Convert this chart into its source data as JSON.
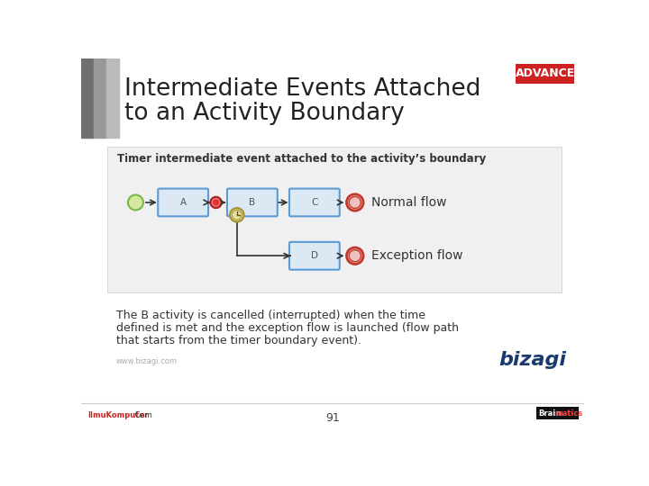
{
  "title_line1": "Intermediate Events Attached",
  "title_line2": "to an Activity Boundary",
  "advance_label": "ADVANCE",
  "advance_bg": "#cc2222",
  "advance_fg": "#ffffff",
  "subtitle": "Timer intermediate event attached to the activity’s boundary",
  "normal_flow_label": "Normal flow",
  "exception_flow_label": "Exception flow",
  "body_line1": "The B activity is cancelled (interrupted) when the time",
  "body_line2": "defined is met and the exception flow is launched (flow path",
  "body_line3": "that starts from the timer boundary event).",
  "page_number": "91",
  "bg_color": "#ffffff",
  "title_color": "#222222",
  "subtitle_color": "#333333",
  "body_color": "#333333",
  "box_fill": "#dce9f5",
  "box_edge": "#5b9bd5",
  "start_event_fill": "#d4e8a0",
  "start_event_edge": "#7ab648",
  "end_event_fill": "#f0c0c0",
  "end_event_edge": "#c0392b",
  "timer_fill": "#e8e0a0",
  "timer_edge": "#a09030",
  "red_event_fill": "#dd3333",
  "red_event_edge": "#aa2222",
  "flow_color": "#333333",
  "bizagi_color": "#1a3a6e",
  "watermark_color": "#aaaaaa",
  "bar_colors": [
    "#707070",
    "#999999",
    "#bbbbbb"
  ]
}
